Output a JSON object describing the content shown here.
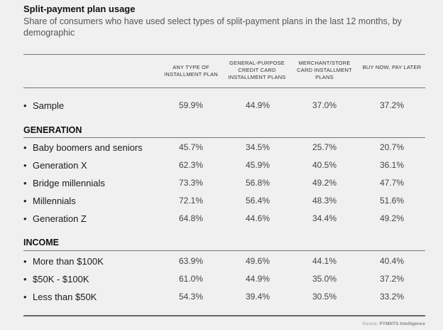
{
  "title": "Split-payment plan usage",
  "subtitle": "Share of consumers who have used select types of split-payment plans in the last 12 months, by demographic",
  "source_prefix": "Source:",
  "source_name": "PYMNTS Intelligence",
  "chart_data": {
    "type": "table",
    "columns": [
      "ANY TYPE OF INSTALLMENT PLAN",
      "GENERAL-PURPOSE CREDIT CARD INSTALLMENT PLANS",
      "MERCHANT/STORE CARD INSTALLMENT PLANS",
      "BUY NOW, PAY LATER"
    ],
    "sections": [
      {
        "name": "",
        "rows": [
          {
            "label": "Sample",
            "values": [
              "59.9%",
              "44.9%",
              "37.0%",
              "37.2%"
            ]
          }
        ]
      },
      {
        "name": "GENERATION",
        "rows": [
          {
            "label": "Baby boomers and seniors",
            "values": [
              "45.7%",
              "34.5%",
              "25.7%",
              "20.7%"
            ]
          },
          {
            "label": "Generation X",
            "values": [
              "62.3%",
              "45.9%",
              "40.5%",
              "36.1%"
            ]
          },
          {
            "label": "Bridge millennials",
            "values": [
              "73.3%",
              "56.8%",
              "49.2%",
              "47.7%"
            ]
          },
          {
            "label": "Millennials",
            "values": [
              "72.1%",
              "56.4%",
              "48.3%",
              "51.6%"
            ]
          },
          {
            "label": "Generation Z",
            "values": [
              "64.8%",
              "44.6%",
              "34.4%",
              "49.2%"
            ]
          }
        ]
      },
      {
        "name": "INCOME",
        "rows": [
          {
            "label": "More than $100K",
            "values": [
              "63.9%",
              "49.6%",
              "44.1%",
              "40.4%"
            ]
          },
          {
            "label": "$50K - $100K",
            "values": [
              "61.0%",
              "44.9%",
              "35.0%",
              "37.2%"
            ]
          },
          {
            "label": "Less than $50K",
            "values": [
              "54.3%",
              "39.4%",
              "30.5%",
              "33.2%"
            ]
          }
        ]
      }
    ]
  }
}
